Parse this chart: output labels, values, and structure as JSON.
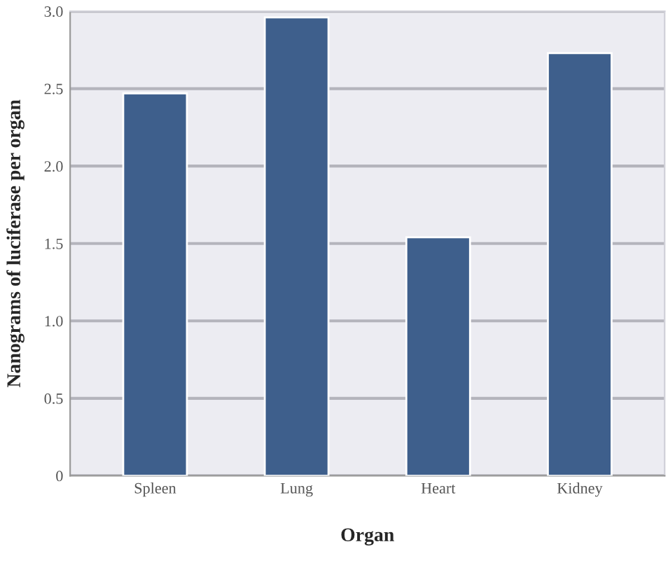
{
  "chart_data": {
    "type": "bar",
    "xlabel": "Organ",
    "ylabel": "Nanograms of luciferase per organ",
    "categories": [
      "Spleen",
      "Lung",
      "Heart",
      "Kidney"
    ],
    "values": [
      2.47,
      2.96,
      1.54,
      2.73
    ],
    "color": "#3e5f8c",
    "ylim": [
      0,
      3.0
    ],
    "yticks": [
      0,
      {
        "value": 0.5,
        "label": "0.5"
      },
      {
        "value": 1.0,
        "label": "1.0"
      },
      {
        "value": 1.5,
        "label": "1.5"
      },
      {
        "value": 2.0,
        "label": "2.0"
      },
      {
        "value": 2.5,
        "label": "2.5"
      },
      {
        "value": 3.0,
        "label": "3.0"
      }
    ],
    "grid": "y",
    "legend": false
  }
}
